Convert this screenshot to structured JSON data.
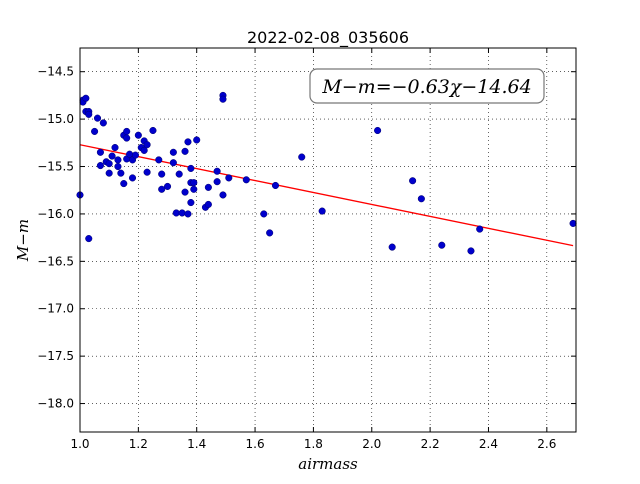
{
  "chart_data": {
    "type": "scatter",
    "title": "2022-02-08_035606",
    "xlabel": "airmass",
    "ylabel": "M−m",
    "xlim": [
      1.0,
      2.7
    ],
    "ylim": [
      -18.3,
      -14.25
    ],
    "y_inverted": true,
    "grid": true,
    "x_ticks": [
      "1.0",
      "1.2",
      "1.4",
      "1.6",
      "1.8",
      "2.0",
      "2.2",
      "2.4",
      "2.6"
    ],
    "y_ticks": [
      "−14.5",
      "−15.0",
      "−15.5",
      "−16.0",
      "−16.5",
      "−17.0",
      "−17.5",
      "−18.0"
    ],
    "annotation": "M−m=−0.63χ−14.64",
    "fit": {
      "slope": -0.63,
      "intercept": -14.64,
      "color": "#ff0000"
    },
    "point_color": "#0000cc",
    "points": [
      [
        1.0,
        -15.8
      ],
      [
        1.01,
        -14.8
      ],
      [
        1.01,
        -14.82
      ],
      [
        1.02,
        -14.78
      ],
      [
        1.02,
        -14.92
      ],
      [
        1.03,
        -14.92
      ],
      [
        1.03,
        -14.95
      ],
      [
        1.03,
        -16.26
      ],
      [
        1.05,
        -15.13
      ],
      [
        1.06,
        -14.99
      ],
      [
        1.07,
        -15.49
      ],
      [
        1.07,
        -15.35
      ],
      [
        1.08,
        -15.04
      ],
      [
        1.09,
        -15.45
      ],
      [
        1.1,
        -15.57
      ],
      [
        1.1,
        -15.47
      ],
      [
        1.11,
        -15.39
      ],
      [
        1.12,
        -15.3
      ],
      [
        1.13,
        -15.43
      ],
      [
        1.13,
        -15.5
      ],
      [
        1.14,
        -15.57
      ],
      [
        1.15,
        -15.68
      ],
      [
        1.15,
        -15.17
      ],
      [
        1.16,
        -15.13
      ],
      [
        1.16,
        -15.2
      ],
      [
        1.16,
        -15.42
      ],
      [
        1.17,
        -15.37
      ],
      [
        1.18,
        -15.62
      ],
      [
        1.18,
        -15.43
      ],
      [
        1.19,
        -15.38
      ],
      [
        1.2,
        -15.17
      ],
      [
        1.21,
        -15.3
      ],
      [
        1.22,
        -15.33
      ],
      [
        1.22,
        -15.23
      ],
      [
        1.23,
        -15.27
      ],
      [
        1.23,
        -15.56
      ],
      [
        1.25,
        -15.12
      ],
      [
        1.27,
        -15.43
      ],
      [
        1.28,
        -15.58
      ],
      [
        1.28,
        -15.74
      ],
      [
        1.3,
        -15.71
      ],
      [
        1.32,
        -15.35
      ],
      [
        1.32,
        -15.46
      ],
      [
        1.33,
        -15.99
      ],
      [
        1.34,
        -15.58
      ],
      [
        1.35,
        -15.99
      ],
      [
        1.36,
        -15.34
      ],
      [
        1.36,
        -15.77
      ],
      [
        1.37,
        -15.24
      ],
      [
        1.37,
        -16.0
      ],
      [
        1.38,
        -15.52
      ],
      [
        1.38,
        -15.67
      ],
      [
        1.38,
        -15.88
      ],
      [
        1.39,
        -15.67
      ],
      [
        1.39,
        -15.74
      ],
      [
        1.4,
        -15.22
      ],
      [
        1.43,
        -15.93
      ],
      [
        1.44,
        -15.9
      ],
      [
        1.44,
        -15.72
      ],
      [
        1.47,
        -15.55
      ],
      [
        1.47,
        -15.66
      ],
      [
        1.49,
        -14.75
      ],
      [
        1.49,
        -14.79
      ],
      [
        1.49,
        -15.8
      ],
      [
        1.51,
        -15.62
      ],
      [
        1.57,
        -15.64
      ],
      [
        1.63,
        -16.0
      ],
      [
        1.65,
        -16.2
      ],
      [
        1.67,
        -15.7
      ],
      [
        1.76,
        -15.4
      ],
      [
        1.83,
        -15.97
      ],
      [
        2.02,
        -15.12
      ],
      [
        2.07,
        -16.35
      ],
      [
        2.14,
        -15.65
      ],
      [
        2.17,
        -15.84
      ],
      [
        2.24,
        -16.33
      ],
      [
        2.34,
        -16.39
      ],
      [
        2.37,
        -16.16
      ],
      [
        2.69,
        -16.1
      ]
    ]
  }
}
